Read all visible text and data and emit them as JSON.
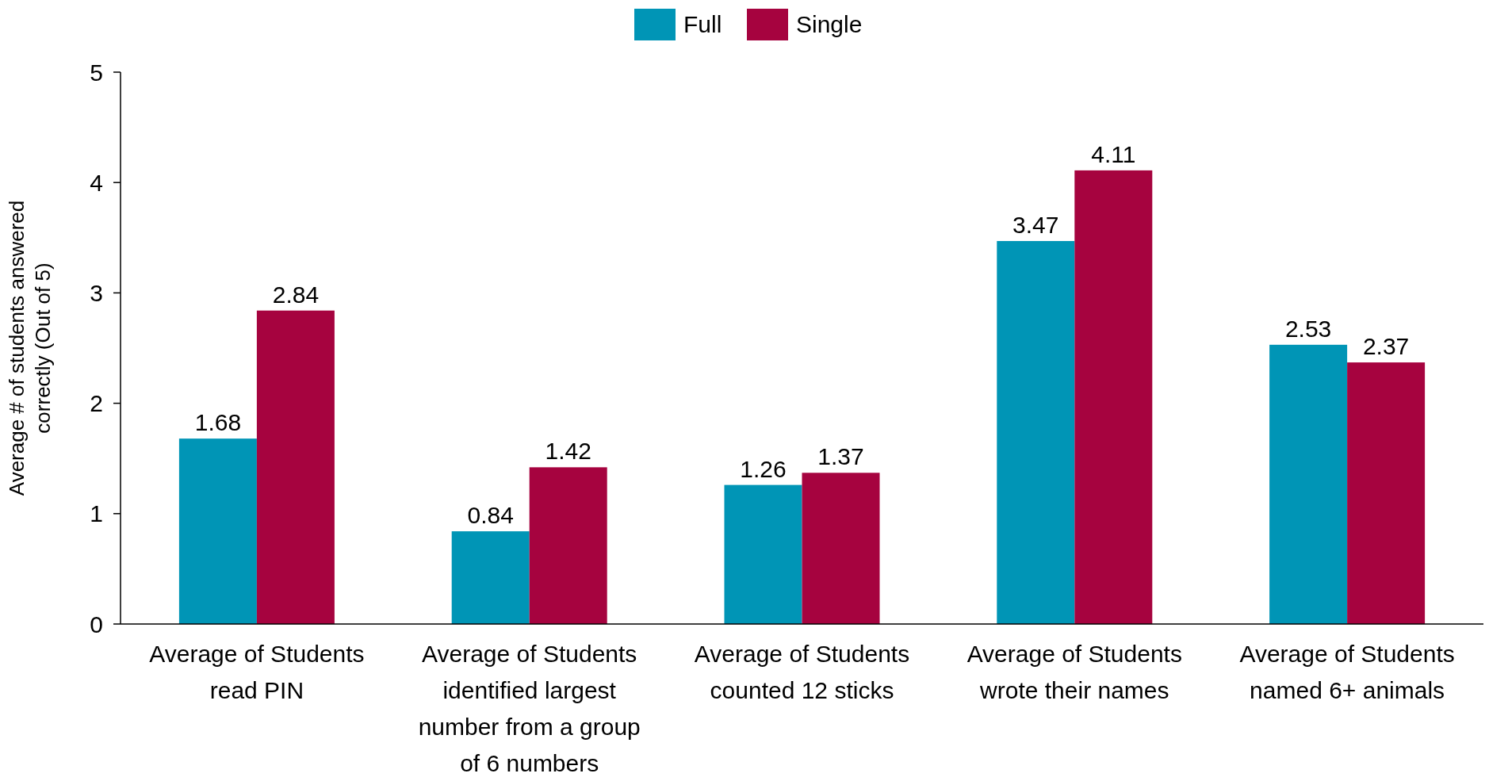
{
  "chart_data": {
    "type": "bar",
    "ylabel": "Average # of students answered correctly (Out of 5)",
    "categories": [
      "Average of Students read PIN",
      "Average of Students identified largest number from a group of 6 numbers",
      "Average of Students counted 12 sticks",
      "Average of Students wrote their names",
      "Average of Students named 6+ animals"
    ],
    "series": [
      {
        "name": "Full",
        "color": "#0095b6",
        "values": [
          1.68,
          0.84,
          1.26,
          3.47,
          2.53
        ]
      },
      {
        "name": "Single",
        "color": "#a6033f",
        "values": [
          2.84,
          1.42,
          1.37,
          4.11,
          2.37
        ]
      }
    ],
    "ylim": [
      0,
      5
    ],
    "yticks": [
      0,
      1,
      2,
      3,
      4,
      5
    ],
    "data_labels": true,
    "legend": "top",
    "grid": false
  }
}
